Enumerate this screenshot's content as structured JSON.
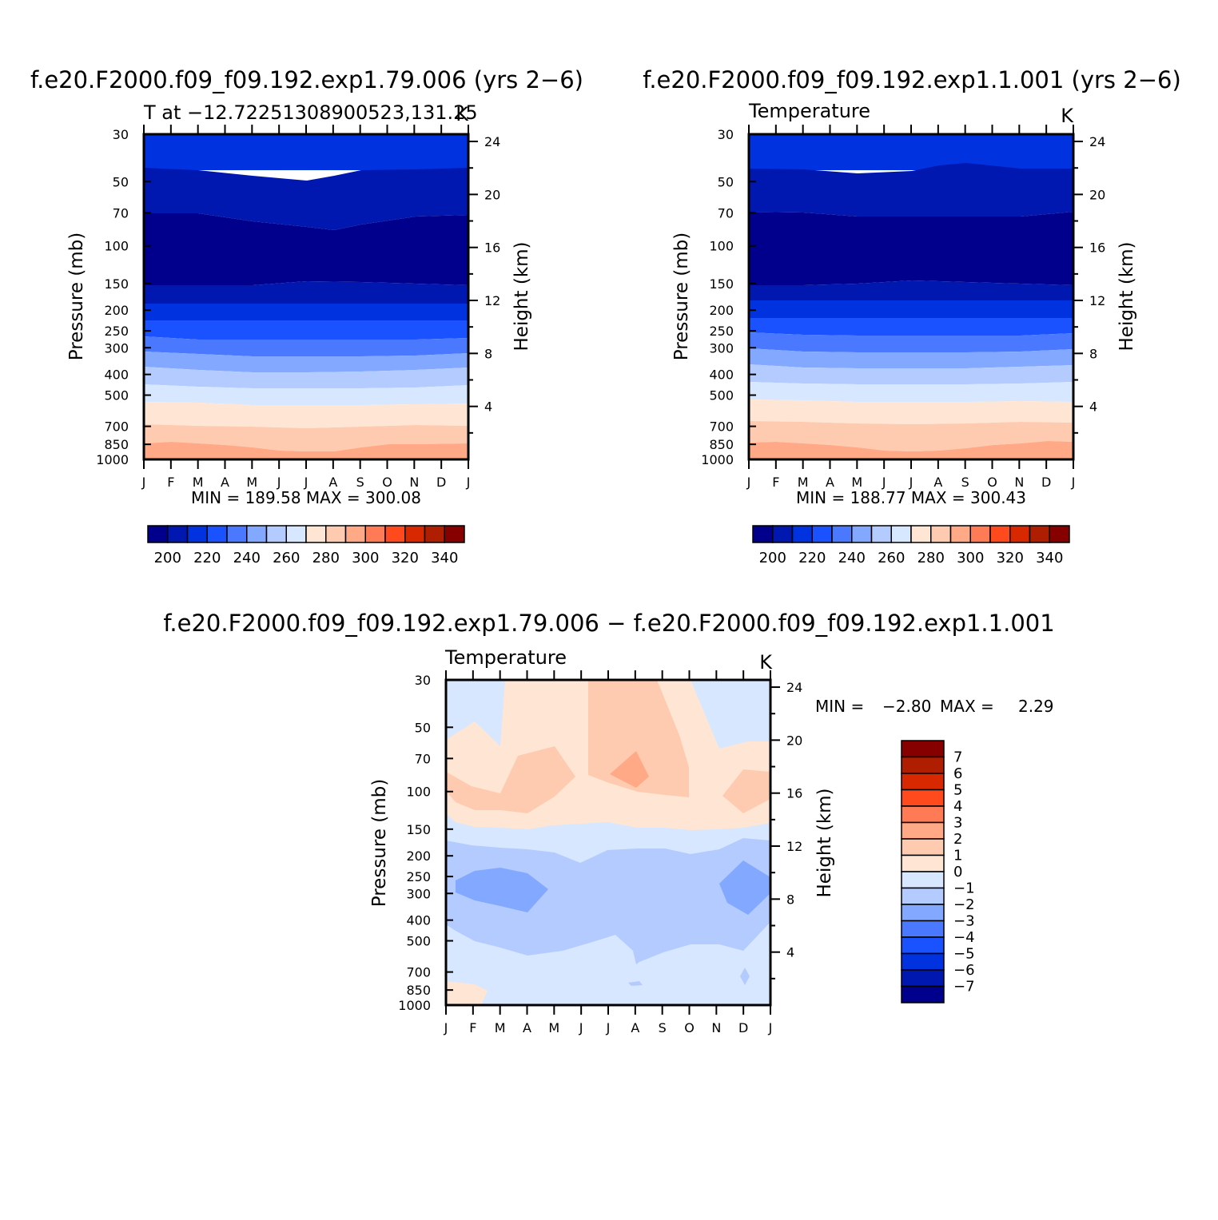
{
  "colors": {
    "levels": [
      "#00008c",
      "#0018b0",
      "#0033e0",
      "#1a52ff",
      "#4a78ff",
      "#82a8ff",
      "#b4cbff",
      "#d6e7ff",
      "#ffe6d4",
      "#ffcbb0",
      "#ffa986",
      "#ff7b55",
      "#ff4a1e",
      "#d82800",
      "#b01e00",
      "#870000"
    ],
    "diff_cold": "#d6e7ff",
    "diff_cool": "#b4cbff",
    "diff_cooler": "#82a8ff",
    "diff_warm": "#ffe6d4",
    "diff_warmer": "#ffcbb0",
    "diff_hot": "#ffa986"
  },
  "months": [
    "J",
    "F",
    "M",
    "A",
    "M",
    "J",
    "J",
    "A",
    "S",
    "O",
    "N",
    "D",
    "J"
  ],
  "pressure_ticks": [
    "30",
    "50",
    "70",
    "100",
    "150",
    "200",
    "250",
    "300",
    "400",
    "500",
    "700",
    "850",
    "1000"
  ],
  "height_ticks": [
    "24",
    "20",
    "16",
    "12",
    "8",
    "4"
  ],
  "left_axis_label": "Pressure  (mb)",
  "right_axis_label": "Height  (km)",
  "panels": [
    {
      "title": "f.e20.F2000.f09_f09.192.exp1.79.006 (yrs 2−6)",
      "subtitle_left": "T at −12.72251308900523,131.25",
      "subtitle_right": "K",
      "stats": "MIN = 189.58  MAX = 300.08"
    },
    {
      "title": "f.e20.F2000.f09_f09.192.exp1.1.001 (yrs 2−6)",
      "subtitle_left": "Temperature",
      "subtitle_right": "K",
      "stats": "MIN = 188.77  MAX = 300.43"
    },
    {
      "title": "f.e20.F2000.f09_f09.192.exp1.79.006 − f.e20.F2000.f09_f09.192.exp1.1.001",
      "subtitle_left": "Temperature",
      "subtitle_right": "K",
      "stats_min_label": "MIN =",
      "stats_min": "−2.80",
      "stats_max_label": "MAX =",
      "stats_max": "2.29"
    }
  ],
  "horizontal_colorbar_labels": [
    "200",
    "220",
    "240",
    "260",
    "280",
    "300",
    "320",
    "340"
  ],
  "vertical_colorbar_labels": [
    "7",
    "6",
    "5",
    "4",
    "3",
    "2",
    "1",
    "0",
    "−1",
    "−2",
    "−3",
    "−4",
    "−5",
    "−6",
    "−7"
  ],
  "chart_data": [
    {
      "type": "heatmap",
      "title": "f.e20.F2000.f09_f09.192.exp1.79.006 (yrs 2−6)",
      "subtitle": "T at −12.72251308900523,131.25",
      "units": "K",
      "xlabel": "",
      "ylabel": "Pressure (mb)",
      "y2label": "Height (km)",
      "x": [
        "J",
        "F",
        "M",
        "A",
        "M",
        "J",
        "J",
        "A",
        "S",
        "O",
        "N",
        "D",
        "J"
      ],
      "y_pressure_mb": [
        30,
        50,
        70,
        100,
        150,
        200,
        250,
        300,
        400,
        500,
        700,
        850,
        1000
      ],
      "y2_height_km": [
        24,
        20,
        16,
        12,
        8,
        4
      ],
      "contour_levels": [
        200,
        210,
        220,
        230,
        240,
        250,
        260,
        270,
        280,
        290,
        300,
        310,
        320,
        330,
        340
      ],
      "min": 189.58,
      "max": 300.08
    },
    {
      "type": "heatmap",
      "title": "f.e20.F2000.f09_f09.192.exp1.1.001 (yrs 2−6)",
      "subtitle": "Temperature",
      "units": "K",
      "ylabel": "Pressure (mb)",
      "y2label": "Height (km)",
      "x": [
        "J",
        "F",
        "M",
        "A",
        "M",
        "J",
        "J",
        "A",
        "S",
        "O",
        "N",
        "D",
        "J"
      ],
      "y_pressure_mb": [
        30,
        50,
        70,
        100,
        150,
        200,
        250,
        300,
        400,
        500,
        700,
        850,
        1000
      ],
      "y2_height_km": [
        24,
        20,
        16,
        12,
        8,
        4
      ],
      "contour_levels": [
        200,
        210,
        220,
        230,
        240,
        250,
        260,
        270,
        280,
        290,
        300,
        310,
        320,
        330,
        340
      ],
      "min": 188.77,
      "max": 300.43
    },
    {
      "type": "heatmap",
      "title": "f.e20.F2000.f09_f09.192.exp1.79.006 − f.e20.F2000.f09_f09.192.exp1.1.001",
      "subtitle": "Temperature",
      "units": "K",
      "ylabel": "Pressure (mb)",
      "y2label": "Height (km)",
      "x": [
        "J",
        "F",
        "M",
        "A",
        "M",
        "J",
        "J",
        "A",
        "S",
        "O",
        "N",
        "D",
        "J"
      ],
      "y_pressure_mb": [
        30,
        50,
        70,
        100,
        150,
        200,
        250,
        300,
        400,
        500,
        700,
        850,
        1000
      ],
      "y2_height_km": [
        24,
        20,
        16,
        12,
        8,
        4
      ],
      "contour_levels": [
        -7,
        -6,
        -5,
        -4,
        -3,
        -2,
        -1,
        0,
        1,
        2,
        3,
        4,
        5,
        6,
        7
      ],
      "min": -2.8,
      "max": 2.29
    }
  ]
}
